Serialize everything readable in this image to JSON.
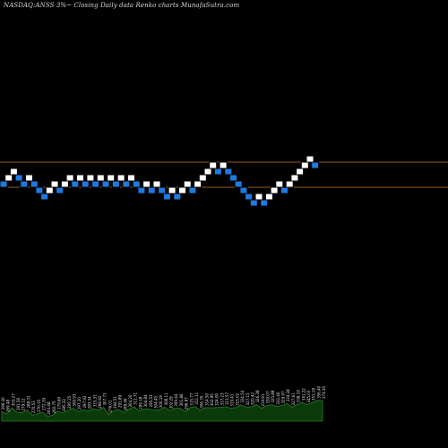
{
  "header": {
    "title": "NASDAQ:ANSS 3%~  Closing Daily data  Renko  charts MunafaSutra.com"
  },
  "colors": {
    "background": "#000000",
    "up_brick": "#ffffff",
    "down_brick": "#1e7ae0",
    "brick_border": "#000000",
    "level_line": "#c8782a",
    "volume_fill": "#0a3a0a",
    "volume_stroke": "#2c7a2c",
    "label_text": "#e0e0e0"
  },
  "chart_data": {
    "type": "renko",
    "brick_size_percent": 3,
    "bricks": [
      {
        "level": 2,
        "dir": "down"
      },
      {
        "level": 3,
        "dir": "up"
      },
      {
        "level": 4,
        "dir": "up"
      },
      {
        "level": 3,
        "dir": "down"
      },
      {
        "level": 2,
        "dir": "down"
      },
      {
        "level": 3,
        "dir": "up"
      },
      {
        "level": 2,
        "dir": "down"
      },
      {
        "level": 1,
        "dir": "down"
      },
      {
        "level": 0,
        "dir": "down"
      },
      {
        "level": 1,
        "dir": "up"
      },
      {
        "level": 2,
        "dir": "up"
      },
      {
        "level": 1,
        "dir": "down"
      },
      {
        "level": 2,
        "dir": "up"
      },
      {
        "level": 3,
        "dir": "up"
      },
      {
        "level": 2,
        "dir": "down"
      },
      {
        "level": 3,
        "dir": "up"
      },
      {
        "level": 2,
        "dir": "down"
      },
      {
        "level": 3,
        "dir": "up"
      },
      {
        "level": 2,
        "dir": "down"
      },
      {
        "level": 3,
        "dir": "up"
      },
      {
        "level": 2,
        "dir": "down"
      },
      {
        "level": 3,
        "dir": "up"
      },
      {
        "level": 2,
        "dir": "down"
      },
      {
        "level": 3,
        "dir": "up"
      },
      {
        "level": 2,
        "dir": "down"
      },
      {
        "level": 3,
        "dir": "up"
      },
      {
        "level": 2,
        "dir": "down"
      },
      {
        "level": 1,
        "dir": "down"
      },
      {
        "level": 2,
        "dir": "up"
      },
      {
        "level": 1,
        "dir": "down"
      },
      {
        "level": 2,
        "dir": "up"
      },
      {
        "level": 1,
        "dir": "down"
      },
      {
        "level": 0,
        "dir": "down"
      },
      {
        "level": 1,
        "dir": "up"
      },
      {
        "level": 0,
        "dir": "down"
      },
      {
        "level": 1,
        "dir": "up"
      },
      {
        "level": 2,
        "dir": "up"
      },
      {
        "level": 1,
        "dir": "down"
      },
      {
        "level": 2,
        "dir": "up"
      },
      {
        "level": 3,
        "dir": "up"
      },
      {
        "level": 4,
        "dir": "up"
      },
      {
        "level": 5,
        "dir": "up"
      },
      {
        "level": 4,
        "dir": "down"
      },
      {
        "level": 5,
        "dir": "up"
      },
      {
        "level": 4,
        "dir": "down"
      },
      {
        "level": 3,
        "dir": "down"
      },
      {
        "level": 2,
        "dir": "down"
      },
      {
        "level": 1,
        "dir": "down"
      },
      {
        "level": 0,
        "dir": "down"
      },
      {
        "level": -1,
        "dir": "down"
      },
      {
        "level": 0,
        "dir": "up"
      },
      {
        "level": -1,
        "dir": "down"
      },
      {
        "level": 0,
        "dir": "up"
      },
      {
        "level": 1,
        "dir": "up"
      },
      {
        "level": 2,
        "dir": "up"
      },
      {
        "level": 1,
        "dir": "down"
      },
      {
        "level": 2,
        "dir": "up"
      },
      {
        "level": 3,
        "dir": "up"
      },
      {
        "level": 4,
        "dir": "up"
      },
      {
        "level": 5,
        "dir": "up"
      },
      {
        "level": 6,
        "dir": "up"
      },
      {
        "level": 5,
        "dir": "down"
      }
    ],
    "reference_levels": [
      5.5,
      1.5
    ],
    "volume_labels": [
      "296.30",
      "269.48",
      "303.27",
      "291.56",
      "279.12",
      "288.31",
      "270.53",
      "270.15",
      "272.39",
      "263.48",
      "260.75",
      "279.69",
      "285.32",
      "295.15",
      "300.93",
      "297.20",
      "297.92",
      "283.34",
      "315.31",
      "296.92",
      "307.73",
      "276.01",
      "294.51",
      "291.89",
      "289.06",
      "304.20",
      "311.71",
      "299.18",
      "304.84",
      "295.53",
      "304.45",
      "300.19",
      "308.11",
      "302.29",
      "309.44",
      "301.86",
      "296.87",
      "315.77",
      "312.11",
      "306.35",
      "314.50",
      "302.95",
      "324.00",
      "317.23",
      "311.57",
      "319.41",
      "315.02",
      "324.54",
      "327.15",
      "320.42",
      "326.38",
      "319.91",
      "330.07",
      "325.88",
      "332.40",
      "329.97",
      "334.28",
      "327.61",
      "338.19",
      "341.22",
      "345.03",
      "351.18",
      "356.40",
      "374.30"
    ]
  }
}
